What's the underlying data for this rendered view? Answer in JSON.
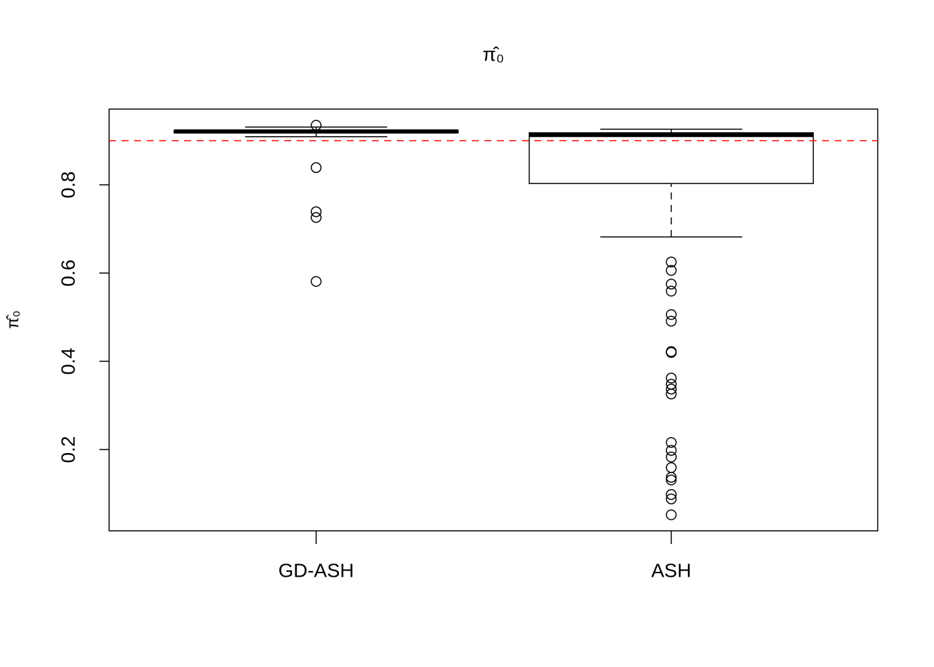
{
  "chart_data": {
    "type": "box",
    "title": "π̂₀",
    "y_label": "π̂₀",
    "categories": [
      "GD-ASH",
      "ASH"
    ],
    "boxes": [
      {
        "whisker_low": 0.909,
        "q1": 0.918,
        "median": 0.921,
        "q3": 0.923,
        "whisker_high": 0.931,
        "outliers": [
          0.935,
          0.839,
          0.739,
          0.726,
          0.581
        ]
      },
      {
        "whisker_low": 0.682,
        "q1": 0.803,
        "median": 0.913,
        "q3": 0.918,
        "whisker_high": 0.926,
        "outliers": [
          0.625,
          0.606,
          0.575,
          0.559,
          0.506,
          0.491,
          0.422,
          0.42,
          0.362,
          0.348,
          0.337,
          0.326,
          0.216,
          0.198,
          0.183,
          0.159,
          0.137,
          0.131,
          0.098,
          0.088,
          0.052
        ]
      }
    ],
    "reference_line": {
      "value": 0.9,
      "color": "#ff0000"
    },
    "ylim": [
      0.0157,
      0.9717
    ],
    "yticks": [
      0.2,
      0.4,
      0.6,
      0.8
    ]
  }
}
